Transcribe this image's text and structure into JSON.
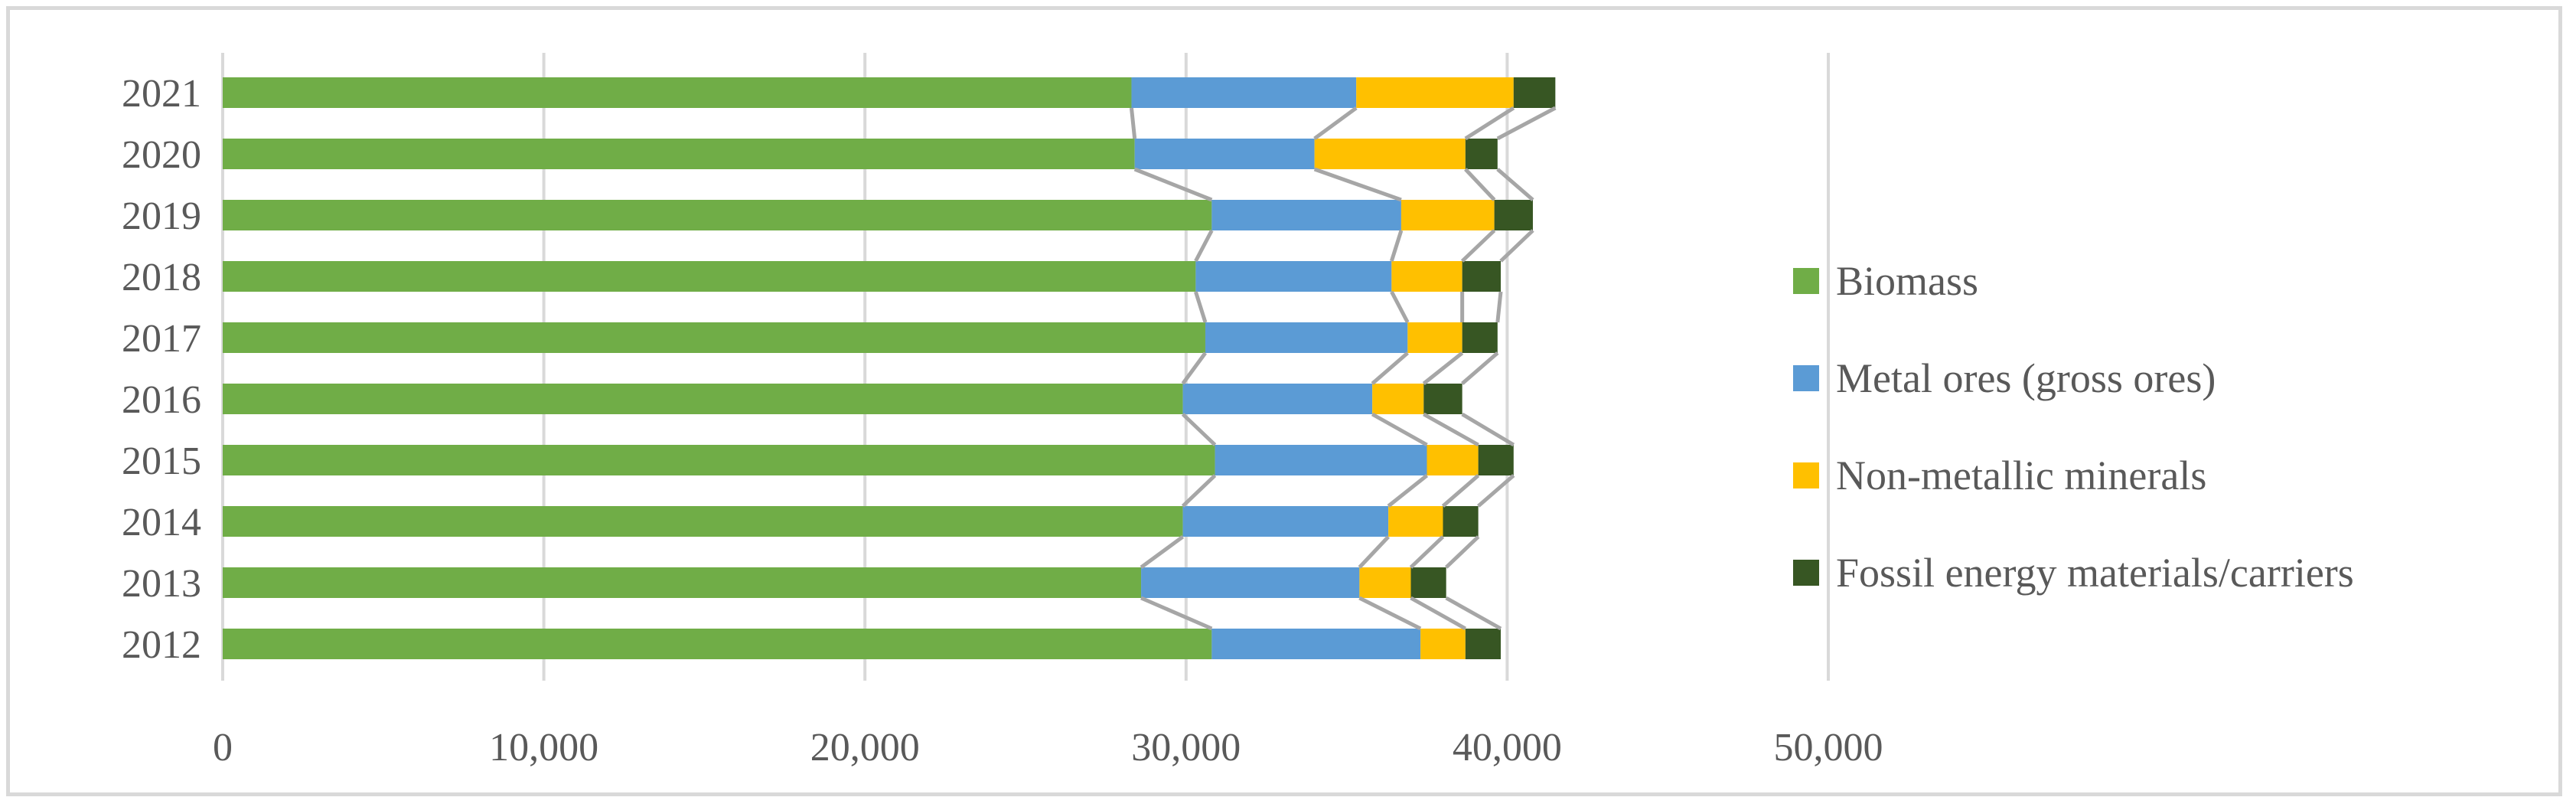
{
  "chart_data": {
    "type": "bar",
    "orientation": "horizontal",
    "stacked": true,
    "categories": [
      "2021",
      "2020",
      "2019",
      "2018",
      "2017",
      "2016",
      "2015",
      "2014",
      "2013",
      "2012"
    ],
    "series": [
      {
        "name": "Biomass",
        "color": "#70ad47",
        "values": [
          28300,
          28400,
          30800,
          30300,
          30600,
          29900,
          30900,
          29900,
          28600,
          30800
        ]
      },
      {
        "name": "Metal ores (gross ores)",
        "color": "#5b9bd5",
        "values": [
          7000,
          5600,
          5900,
          6100,
          6300,
          5900,
          6600,
          6400,
          6800,
          6500
        ]
      },
      {
        "name": "Non-metallic minerals",
        "color": "#ffc000",
        "values": [
          4900,
          4700,
          2900,
          2200,
          1700,
          1600,
          1600,
          1700,
          1600,
          1400
        ]
      },
      {
        "name": "Fossil energy materials/carriers",
        "color": "#375623",
        "values": [
          1300,
          1000,
          1200,
          1200,
          1100,
          1200,
          1100,
          1100,
          1100,
          1100
        ]
      }
    ],
    "xlim": [
      0,
      50000
    ],
    "x_ticks": [
      0,
      10000,
      20000,
      30000,
      40000,
      50000
    ],
    "x_tick_labels": [
      "0",
      "10,000",
      "20,000",
      "30,000",
      "40,000",
      "50,000"
    ],
    "grid": "vertical",
    "series_lines": true,
    "legend_position": "right",
    "title": "",
    "xlabel": "",
    "ylabel": ""
  }
}
